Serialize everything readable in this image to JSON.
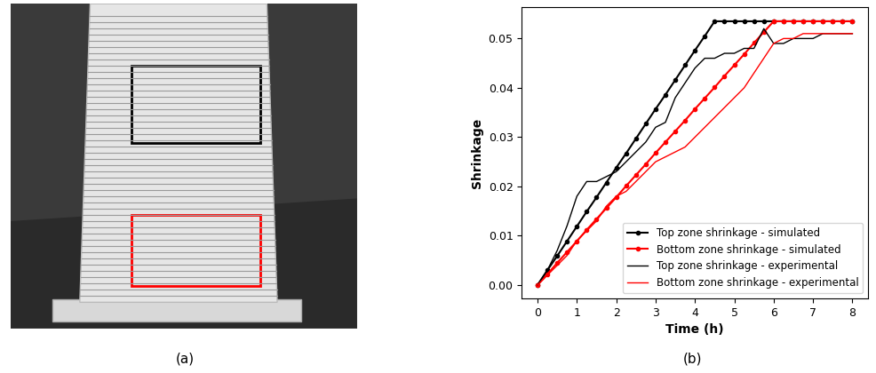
{
  "captions": [
    "(a)",
    "(b)"
  ],
  "chart_data": {
    "type": "line",
    "x_label": "Time (h)",
    "y_label": "Shrinkage",
    "x": [
      0,
      0.25,
      0.5,
      0.75,
      1,
      1.25,
      1.5,
      1.75,
      2,
      2.25,
      2.5,
      2.75,
      3,
      3.25,
      3.5,
      3.75,
      4,
      4.25,
      4.5,
      4.75,
      5,
      5.25,
      5.5,
      5.75,
      6,
      6.25,
      6.5,
      6.75,
      7,
      7.25,
      7.5,
      7.75,
      8
    ],
    "series": [
      {
        "name": "Top zone shrinkage - simulated",
        "color": "#000000",
        "marker": "o",
        "line_style": "solid",
        "values": [
          0,
          0.003,
          0.0059,
          0.0089,
          0.0119,
          0.0149,
          0.0178,
          0.0208,
          0.0238,
          0.0267,
          0.0297,
          0.0327,
          0.0357,
          0.0386,
          0.0416,
          0.0446,
          0.0476,
          0.0505,
          0.0535,
          0.0535,
          0.0535,
          0.0535,
          0.0535,
          0.0535,
          0.0535,
          0.0535,
          0.0535,
          0.0535,
          0.0535,
          0.0535,
          0.0535,
          0.0535,
          0.0535
        ]
      },
      {
        "name": "Bottom zone shrinkage - simulated",
        "color": "#ff0000",
        "marker": "o",
        "line_style": "solid",
        "values": [
          0,
          0.0022,
          0.0045,
          0.0067,
          0.0089,
          0.0112,
          0.0134,
          0.0156,
          0.0178,
          0.0201,
          0.0223,
          0.0245,
          0.0268,
          0.029,
          0.0312,
          0.0334,
          0.0357,
          0.0379,
          0.0401,
          0.0424,
          0.0446,
          0.0468,
          0.0491,
          0.0513,
          0.0535,
          0.0535,
          0.0535,
          0.0535,
          0.0535,
          0.0535,
          0.0535,
          0.0535,
          0.0535
        ]
      },
      {
        "name": "Top zone shrinkage - experimental",
        "color": "#000000",
        "marker": "none",
        "line_style": "solid",
        "values": [
          0,
          0.003,
          0.007,
          0.012,
          0.018,
          0.021,
          0.021,
          0.022,
          0.023,
          0.025,
          0.027,
          0.029,
          0.032,
          0.033,
          0.038,
          0.041,
          0.044,
          0.046,
          0.046,
          0.047,
          0.047,
          0.048,
          0.048,
          0.052,
          0.049,
          0.049,
          0.05,
          0.05,
          0.05,
          0.051,
          0.051,
          0.051,
          0.051
        ]
      },
      {
        "name": "Bottom zone shrinkage - experimental",
        "color": "#ff0000",
        "marker": "none",
        "line_style": "solid",
        "values": [
          0,
          0.002,
          0.004,
          0.006,
          0.009,
          0.011,
          0.013,
          0.016,
          0.018,
          0.019,
          0.021,
          0.023,
          0.025,
          0.026,
          0.027,
          0.028,
          0.03,
          0.032,
          0.034,
          0.036,
          0.038,
          0.04,
          0.043,
          0.046,
          0.049,
          0.05,
          0.05,
          0.051,
          0.051,
          0.051,
          0.051,
          0.051,
          0.051
        ]
      }
    ],
    "xlim": [
      -0.4,
      8.4
    ],
    "xticks": [
      0,
      1,
      2,
      3,
      4,
      5,
      6,
      7,
      8
    ],
    "ylim": [
      -0.0027,
      0.0563
    ],
    "yticks": [
      {
        "value": 0,
        "label": "0.00"
      },
      {
        "value": 0.01,
        "label": "0.01"
      },
      {
        "value": 0.02,
        "label": "0.02"
      },
      {
        "value": 0.03,
        "label": "0.03"
      },
      {
        "value": 0.04,
        "label": "0.04"
      },
      {
        "value": 0.05,
        "label": "0.05"
      }
    ],
    "legend": "lower right"
  }
}
